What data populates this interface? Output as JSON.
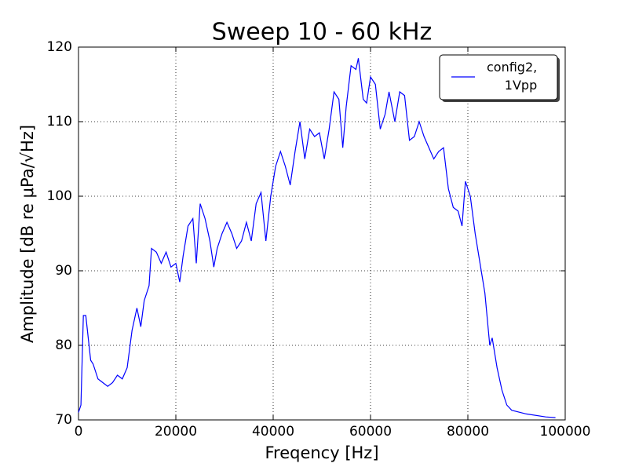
{
  "chart_data": {
    "type": "line",
    "title": "Sweep 10 - 60 kHz",
    "x_label": "Freqency [Hz]",
    "y_label": "Amplitude [dB re μPa/√Hz]",
    "xlim": [
      0,
      100000
    ],
    "ylim": [
      70,
      120
    ],
    "xticks": [
      0,
      20000,
      40000,
      60000,
      80000,
      100000
    ],
    "yticks": [
      70,
      80,
      90,
      100,
      110,
      120
    ],
    "grid": true,
    "legend": "upper right",
    "x": [
      0,
      500,
      1000,
      1500,
      2000,
      2500,
      3000,
      4000,
      5000,
      6000,
      7000,
      8000,
      9000,
      10000,
      11000,
      12000,
      12800,
      13500,
      14500,
      15000,
      16000,
      17000,
      18000,
      19000,
      20000,
      20800,
      21500,
      22500,
      23500,
      24200,
      25000,
      26000,
      27000,
      27800,
      28500,
      29500,
      30500,
      31500,
      32500,
      33500,
      34500,
      35500,
      36500,
      37500,
      38500,
      39500,
      40500,
      41500,
      42500,
      43500,
      44500,
      45500,
      46500,
      47500,
      48500,
      49500,
      50500,
      51500,
      52500,
      53500,
      54300,
      55000,
      56000,
      57000,
      57500,
      58500,
      59200,
      60000,
      61000,
      62000,
      63000,
      63800,
      65000,
      66000,
      67000,
      68000,
      69000,
      70000,
      71000,
      72000,
      73000,
      74000,
      75000,
      76000,
      77000,
      78000,
      78800,
      79500,
      80500,
      81500,
      82500,
      83500,
      84500,
      85000,
      86000,
      87000,
      88000,
      89000,
      92000,
      96000,
      98000
    ],
    "series": [
      {
        "name": "config2,\n1Vpp",
        "color": "#0000ff",
        "values": [
          71,
          72,
          84,
          84,
          81,
          78,
          77.5,
          75.5,
          75,
          74.5,
          75,
          76,
          75.5,
          77,
          82,
          85,
          82.5,
          86,
          88,
          93,
          92.5,
          91,
          92.5,
          90.5,
          91,
          88.5,
          92,
          96,
          97,
          91,
          99,
          97,
          94,
          90.5,
          93,
          95,
          96.5,
          95,
          93,
          94,
          96.5,
          94,
          99,
          100.5,
          94,
          100,
          104,
          106,
          104,
          101.5,
          106,
          110,
          105,
          109,
          108,
          108.5,
          105,
          109,
          114,
          113,
          106.5,
          112,
          117.5,
          117,
          118.5,
          113,
          112.5,
          116,
          115,
          109,
          111,
          114,
          110,
          114,
          113.5,
          107.5,
          108,
          110,
          108,
          106.5,
          105,
          106,
          106.5,
          101,
          98.5,
          98,
          96,
          102,
          100,
          95,
          91,
          87,
          80,
          81,
          77,
          74,
          72,
          71.3,
          70.8,
          70.4,
          70.3
        ]
      }
    ]
  }
}
